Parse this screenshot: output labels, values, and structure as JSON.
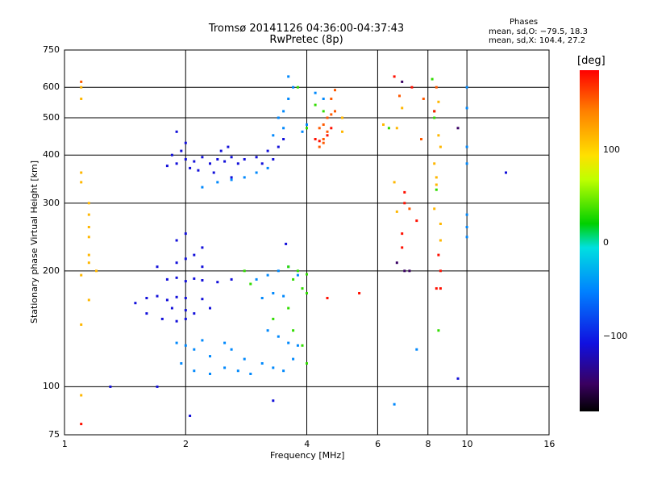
{
  "chart_data": {
    "type": "scatter",
    "title": "Tromsø 20141126 04:36:00-04:37:43",
    "subtitle": "RwPretec (8p)",
    "xlabel": "Frequency [MHz]",
    "ylabel": "Stationary phase Virtual Height [km]",
    "x_scale": "log",
    "y_scale": "log",
    "xlim": [
      1,
      16
    ],
    "ylim": [
      75,
      750
    ],
    "x_ticks": [
      "1",
      "2",
      "4",
      "6",
      "8",
      "10",
      "16"
    ],
    "y_ticks": [
      "75",
      "100",
      "200",
      "300",
      "400",
      "500",
      "600",
      "750"
    ],
    "grid": true,
    "phase_stats": {
      "title": "Phases",
      "o_line": "mean, sd,O: −79.5, 18.3",
      "x_line": "mean, sd,X: 104.4, 27.2"
    },
    "colorbar": {
      "label": "[deg]",
      "ticks": [
        "100",
        "0",
        "−100"
      ],
      "range": [
        -180,
        180
      ]
    },
    "series": [
      {
        "points": [
          [
            1.8,
            190
          ],
          [
            1.9,
            192
          ],
          [
            2.0,
            188
          ],
          [
            2.1,
            191
          ],
          [
            2.2,
            189
          ],
          [
            2.4,
            187
          ],
          [
            2.6,
            190
          ],
          [
            1.6,
            170
          ],
          [
            1.7,
            172
          ],
          [
            1.8,
            168
          ],
          [
            1.9,
            171
          ],
          [
            2.0,
            170
          ],
          [
            2.2,
            169
          ],
          [
            1.7,
            205
          ],
          [
            1.9,
            210
          ],
          [
            2.0,
            215
          ],
          [
            2.1,
            220
          ],
          [
            2.2,
            230
          ],
          [
            1.9,
            240
          ],
          [
            2.0,
            250
          ],
          [
            2.2,
            205
          ],
          [
            1.85,
            160
          ],
          [
            2.0,
            158
          ],
          [
            2.1,
            155
          ],
          [
            2.3,
            160
          ],
          [
            1.75,
            150
          ],
          [
            1.9,
            148
          ],
          [
            2.0,
            150
          ],
          [
            1.8,
            375
          ],
          [
            1.9,
            380
          ],
          [
            2.0,
            390
          ],
          [
            2.1,
            385
          ],
          [
            2.2,
            395
          ],
          [
            1.85,
            400
          ],
          [
            1.95,
            410
          ],
          [
            2.05,
            370
          ],
          [
            2.15,
            365
          ],
          [
            2.3,
            380
          ],
          [
            2.4,
            390
          ],
          [
            2.5,
            385
          ],
          [
            2.6,
            395
          ],
          [
            2.7,
            380
          ],
          [
            2.8,
            390
          ],
          [
            2.45,
            410
          ],
          [
            2.55,
            420
          ],
          [
            2.35,
            360
          ],
          [
            2.6,
            350
          ],
          [
            3.0,
            395
          ],
          [
            3.2,
            410
          ],
          [
            3.4,
            420
          ],
          [
            3.5,
            440
          ],
          [
            3.3,
            390
          ],
          [
            3.1,
            380
          ],
          [
            1.9,
            460
          ],
          [
            2.0,
            430
          ],
          [
            1.3,
            100
          ],
          [
            1.7,
            100
          ],
          [
            2.05,
            84
          ],
          [
            3.3,
            92
          ],
          [
            3.55,
            235
          ],
          [
            9.5,
            105
          ],
          [
            12.5,
            360
          ],
          [
            1.5,
            165
          ],
          [
            1.6,
            155
          ]
        ],
        "color_phase": -110
      },
      {
        "points": [
          [
            1.9,
            130
          ],
          [
            2.0,
            128
          ],
          [
            2.1,
            125
          ],
          [
            2.2,
            132
          ],
          [
            2.3,
            120
          ],
          [
            1.95,
            115
          ],
          [
            2.1,
            110
          ],
          [
            2.3,
            108
          ],
          [
            2.5,
            112
          ],
          [
            2.7,
            110
          ],
          [
            2.9,
            108
          ],
          [
            2.5,
            130
          ],
          [
            2.6,
            125
          ],
          [
            2.8,
            118
          ],
          [
            3.0,
            190
          ],
          [
            3.2,
            195
          ],
          [
            3.4,
            200
          ],
          [
            3.6,
            205
          ],
          [
            3.8,
            195
          ],
          [
            3.1,
            170
          ],
          [
            3.3,
            175
          ],
          [
            3.5,
            172
          ],
          [
            3.2,
            140
          ],
          [
            3.4,
            135
          ],
          [
            3.6,
            130
          ],
          [
            3.8,
            128
          ],
          [
            3.1,
            115
          ],
          [
            3.3,
            112
          ],
          [
            3.5,
            110
          ],
          [
            3.7,
            118
          ],
          [
            3.4,
            500
          ],
          [
            3.5,
            520
          ],
          [
            3.6,
            560
          ],
          [
            3.7,
            600
          ],
          [
            3.6,
            640
          ],
          [
            3.9,
            460
          ],
          [
            4.0,
            480
          ],
          [
            3.3,
            450
          ],
          [
            3.5,
            470
          ],
          [
            4.2,
            580
          ],
          [
            4.4,
            560
          ],
          [
            2.2,
            330
          ],
          [
            2.4,
            340
          ],
          [
            2.6,
            345
          ],
          [
            2.8,
            350
          ],
          [
            3.0,
            360
          ],
          [
            3.2,
            370
          ],
          [
            10.0,
            600
          ],
          [
            10.0,
            530
          ],
          [
            10.0,
            280
          ],
          [
            10.0,
            260
          ],
          [
            10.0,
            245
          ],
          [
            7.5,
            125
          ],
          [
            6.6,
            90
          ],
          [
            10.0,
            380
          ],
          [
            10.0,
            420
          ]
        ],
        "color_phase": -50
      },
      {
        "points": [
          [
            4.3,
            470
          ],
          [
            4.4,
            480
          ],
          [
            4.5,
            500
          ],
          [
            4.6,
            510
          ],
          [
            4.5,
            460
          ],
          [
            4.7,
            520
          ],
          [
            4.4,
            440
          ],
          [
            4.6,
            560
          ],
          [
            4.7,
            590
          ],
          [
            4.3,
            420
          ],
          [
            4.4,
            430
          ],
          [
            1.1,
            620
          ],
          [
            6.8,
            570
          ],
          [
            7.8,
            560
          ],
          [
            8.4,
            600
          ],
          [
            7.2,
            290
          ],
          [
            7.7,
            440
          ]
        ],
        "color_phase": 150
      },
      {
        "points": [
          [
            1.1,
            360
          ],
          [
            1.1,
            340
          ],
          [
            1.15,
            300
          ],
          [
            1.15,
            280
          ],
          [
            1.15,
            260
          ],
          [
            1.15,
            245
          ],
          [
            1.15,
            220
          ],
          [
            1.15,
            210
          ],
          [
            1.2,
            200
          ],
          [
            1.1,
            195
          ],
          [
            1.1,
            145
          ],
          [
            1.15,
            168
          ],
          [
            1.1,
            560
          ],
          [
            1.1,
            600
          ],
          [
            1.1,
            95
          ],
          [
            4.9,
            460
          ],
          [
            4.9,
            500
          ],
          [
            6.7,
            470
          ],
          [
            6.6,
            340
          ],
          [
            6.9,
            530
          ],
          [
            8.3,
            290
          ],
          [
            8.5,
            550
          ],
          [
            8.5,
            450
          ],
          [
            8.3,
            380
          ],
          [
            8.4,
            350
          ],
          [
            8.4,
            335
          ],
          [
            8.6,
            265
          ],
          [
            8.6,
            240
          ],
          [
            6.2,
            480
          ],
          [
            6.7,
            285
          ],
          [
            8.6,
            420
          ]
        ],
        "color_phase": 110
      },
      {
        "points": [
          [
            3.6,
            205
          ],
          [
            3.8,
            200
          ],
          [
            4.0,
            196
          ],
          [
            3.7,
            190
          ],
          [
            3.9,
            180
          ],
          [
            2.8,
            200
          ],
          [
            2.9,
            185
          ],
          [
            4.0,
            175
          ],
          [
            3.6,
            160
          ],
          [
            3.3,
            150
          ],
          [
            3.7,
            140
          ],
          [
            3.9,
            128
          ],
          [
            4.0,
            115
          ],
          [
            4.4,
            520
          ],
          [
            4.2,
            540
          ],
          [
            3.8,
            600
          ],
          [
            4.0,
            470
          ],
          [
            8.3,
            500
          ],
          [
            8.3,
            520
          ],
          [
            8.5,
            140
          ],
          [
            8.4,
            325
          ],
          [
            6.4,
            470
          ],
          [
            8.2,
            630
          ]
        ],
        "color_phase": 30
      },
      {
        "points": [
          [
            4.2,
            440
          ],
          [
            4.3,
            435
          ],
          [
            4.5,
            450
          ],
          [
            4.6,
            470
          ],
          [
            7.0,
            300
          ],
          [
            6.9,
            250
          ],
          [
            7.5,
            270
          ],
          [
            8.5,
            220
          ],
          [
            8.6,
            200
          ],
          [
            8.6,
            180
          ],
          [
            6.9,
            230
          ],
          [
            8.4,
            180
          ],
          [
            8.3,
            520
          ],
          [
            6.6,
            640
          ],
          [
            7.0,
            320
          ],
          [
            7.3,
            600
          ],
          [
            1.1,
            80
          ],
          [
            4.5,
            170
          ],
          [
            5.4,
            175
          ]
        ],
        "color_phase": 175
      },
      {
        "points": [
          [
            6.9,
            620
          ],
          [
            6.7,
            210
          ],
          [
            7.0,
            200
          ],
          [
            7.2,
            200
          ],
          [
            9.5,
            470
          ]
        ],
        "color_phase": -150
      }
    ]
  }
}
